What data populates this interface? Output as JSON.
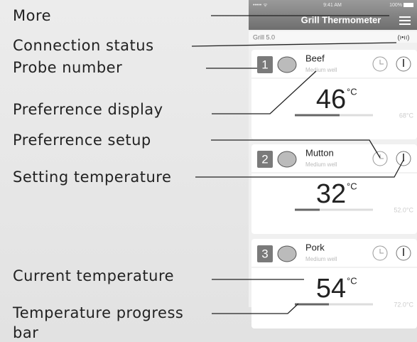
{
  "labels": {
    "more": "More",
    "connection_status": "Connection status",
    "probe_number": "Probe number",
    "preference_display": "Preferrence display",
    "preference_setup": "Preferrence setup",
    "setting_temperature": "Setting temperature",
    "current_temperature": "Current temperature",
    "progress_bar": "Temperature progress bar"
  },
  "phone": {
    "status": {
      "signal": "••••• ᯤ",
      "time": "9:41 AM",
      "battery": "100%"
    },
    "title": "Grill Thermometer",
    "device": "Grill 5.0",
    "probes": [
      {
        "number": "1",
        "name": "Beef",
        "doneness": "Medium well",
        "temperature": "46",
        "unit": "°C",
        "target": "68°C"
      },
      {
        "number": "2",
        "name": "Mutton",
        "doneness": "Medium well",
        "temperature": "32",
        "unit": "°C",
        "target": "52.0°C"
      },
      {
        "number": "3",
        "name": "Pork",
        "doneness": "Medium well",
        "temperature": "54",
        "unit": "°C",
        "target": "72.0°C"
      }
    ]
  }
}
